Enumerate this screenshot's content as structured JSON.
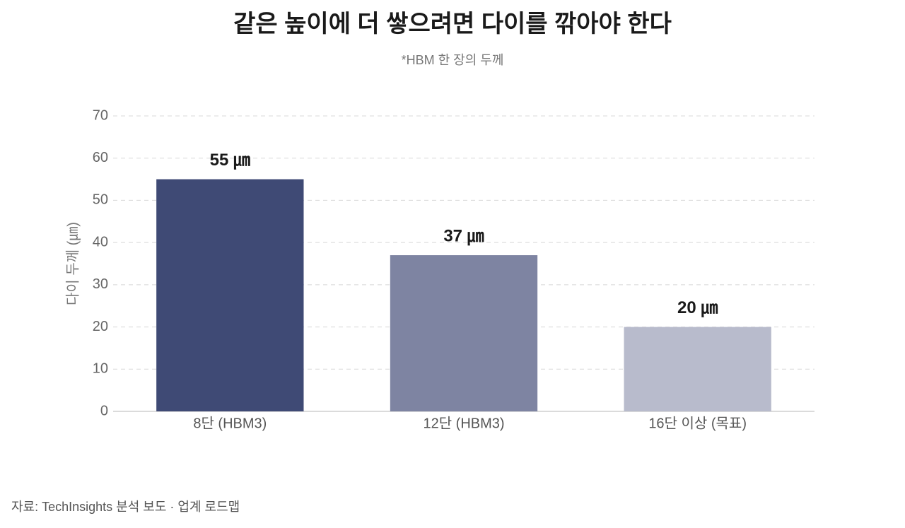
{
  "chart_data": {
    "type": "bar",
    "title": "같은 높이에 더 쌓으려면 다이를 깎아야 한다",
    "subtitle": "*HBM 한 장의 두께",
    "y_label": "다이 두께 (㎛)",
    "source": "자료: TechInsights 분석 보도 · 업계 로드맵",
    "categories": [
      "8단 (HBM3)",
      "12단 (HBM3)",
      "16단 이상 (목표)"
    ],
    "values": [
      55,
      37,
      20
    ],
    "value_labels": [
      "55 ㎛",
      "37 ㎛",
      "20 ㎛"
    ],
    "colors": [
      "#3f4a75",
      "#7e84a2",
      "#b8bbcc"
    ],
    "ylim": [
      0,
      70
    ],
    "yticks": [
      0,
      10,
      20,
      30,
      40,
      50,
      60,
      70
    ],
    "grid": true
  }
}
